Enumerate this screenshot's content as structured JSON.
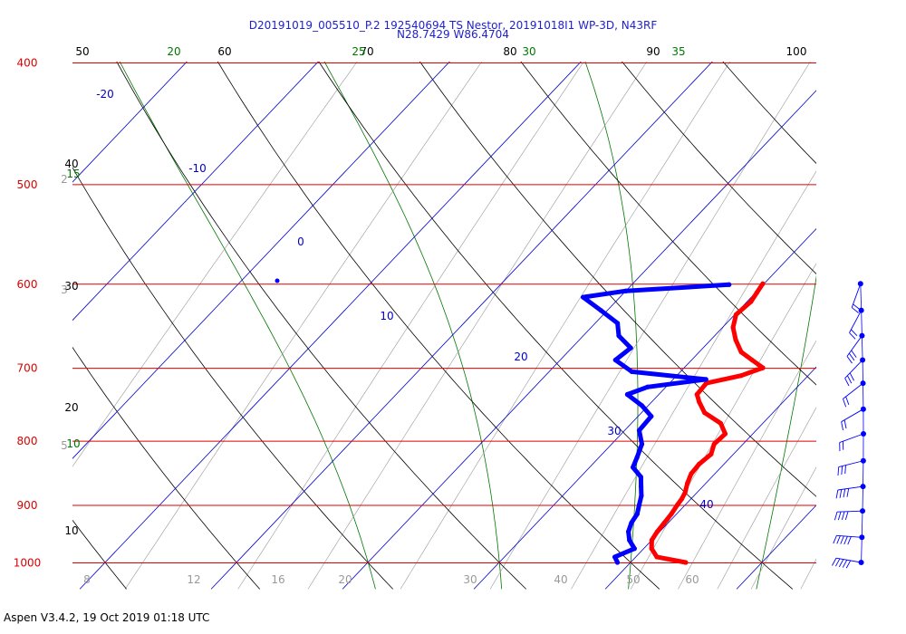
{
  "header": {
    "line1": "D20191019_005510_P.2 192540694 TS Nestor, 20191018I1 WP-3D, N43RF",
    "line2": "N28.7429 W86.4704"
  },
  "footer": {
    "software": "Aspen V3.4.2, 19 Oct 2019  01:18 UTC"
  },
  "colors": {
    "isobar": "#dd0000",
    "isotherm": "#0000cc",
    "dry_adiabat": "#000000",
    "moist_adiabat": "#007700",
    "mixing_ratio": "#999999",
    "temperature": "#ff0000",
    "dewpoint": "#0000ff",
    "wind": "#0000ff"
  },
  "chart_data": {
    "type": "skew-t",
    "title": "D20191019_005510_P.2 192540694 TS Nestor, 20191018I1 WP-3D, N43RF",
    "subtitle": "N28.7429 W86.4704",
    "pressure_levels": [
      400,
      500,
      600,
      700,
      800,
      900,
      1000
    ],
    "isotherm_labels": [
      "-20",
      "-10",
      "0",
      "10",
      "20",
      "30",
      "40"
    ],
    "dry_adiabat_labels": [
      "50",
      "60",
      "70",
      "80",
      "90",
      "100",
      "40",
      "30",
      "20",
      "10"
    ],
    "moist_adiabat_labels": [
      "20",
      "25",
      "30",
      "35",
      "15",
      "10"
    ],
    "mixing_ratio_labels": [
      "8",
      "12",
      "16",
      "20",
      "30",
      "40",
      "50",
      "60"
    ],
    "left_edge_labels": [
      "2",
      "3",
      "5"
    ],
    "series": [
      {
        "name": "Temperature",
        "points": [
          [
            1000,
            24.2
          ],
          [
            990,
            21.6
          ],
          [
            975,
            20.6
          ],
          [
            960,
            20.0
          ],
          [
            945,
            19.8
          ],
          [
            930,
            19.7
          ],
          [
            915,
            19.6
          ],
          [
            900,
            19.4
          ],
          [
            890,
            19.3
          ],
          [
            880,
            19.1
          ],
          [
            865,
            18.6
          ],
          [
            850,
            18.2
          ],
          [
            835,
            18.1
          ],
          [
            820,
            18.3
          ],
          [
            805,
            17.8
          ],
          [
            790,
            17.9
          ],
          [
            775,
            16.8
          ],
          [
            760,
            14.8
          ],
          [
            745,
            13.6
          ],
          [
            735,
            12.9
          ],
          [
            720,
            12.8
          ],
          [
            710,
            14.9
          ],
          [
            700,
            16.0
          ],
          [
            690,
            14.6
          ],
          [
            680,
            13.2
          ],
          [
            665,
            11.9
          ],
          [
            650,
            10.8
          ],
          [
            635,
            10.1
          ],
          [
            620,
            10.3
          ],
          [
            610,
            10.1
          ],
          [
            600,
            9.9
          ]
        ]
      },
      {
        "name": "Dewpoint",
        "points": [
          [
            1000,
            19.0
          ],
          [
            990,
            18.4
          ],
          [
            975,
            19.3
          ],
          [
            960,
            18.3
          ],
          [
            945,
            17.6
          ],
          [
            930,
            17.2
          ],
          [
            915,
            17.0
          ],
          [
            900,
            16.5
          ],
          [
            885,
            16.0
          ],
          [
            870,
            15.3
          ],
          [
            855,
            14.6
          ],
          [
            840,
            13.3
          ],
          [
            825,
            12.9
          ],
          [
            805,
            12.3
          ],
          [
            785,
            11.1
          ],
          [
            765,
            11.0
          ],
          [
            750,
            9.5
          ],
          [
            735,
            7.6
          ],
          [
            725,
            8.6
          ],
          [
            715,
            12.5
          ],
          [
            705,
            6.3
          ],
          [
            690,
            4.2
          ],
          [
            675,
            4.5
          ],
          [
            660,
            2.7
          ],
          [
            645,
            1.7
          ],
          [
            630,
            -0.5
          ],
          [
            615,
            -2.8
          ],
          [
            608,
            0.0
          ],
          [
            601,
            7.4
          ]
        ]
      }
    ],
    "wind_barbs": [
      {
        "pressure": 600,
        "speed_kt": 15
      },
      {
        "pressure": 630,
        "speed_kt": 20
      },
      {
        "pressure": 660,
        "speed_kt": 25
      },
      {
        "pressure": 690,
        "speed_kt": 25
      },
      {
        "pressure": 720,
        "speed_kt": 20
      },
      {
        "pressure": 755,
        "speed_kt": 20
      },
      {
        "pressure": 790,
        "speed_kt": 20
      },
      {
        "pressure": 830,
        "speed_kt": 30
      },
      {
        "pressure": 870,
        "speed_kt": 35
      },
      {
        "pressure": 910,
        "speed_kt": 40
      },
      {
        "pressure": 955,
        "speed_kt": 45
      },
      {
        "pressure": 1000,
        "speed_kt": 50
      }
    ]
  }
}
